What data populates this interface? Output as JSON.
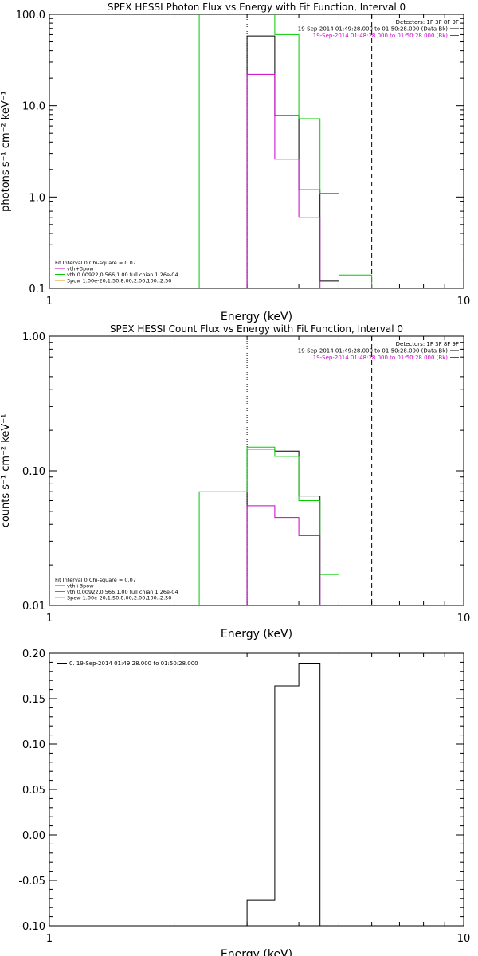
{
  "chart_data": [
    {
      "type": "line",
      "step": true,
      "title": "SPEX HESSI Photon Flux vs Energy with Fit Function, Interval 0",
      "xlabel": "Energy (keV)",
      "ylabel": "photons s⁻¹ cm⁻² keV⁻¹",
      "xscale": "log",
      "yscale": "log",
      "xlim": [
        1,
        10
      ],
      "ylim": [
        0.1,
        100
      ],
      "xticks": [
        "1",
        "10"
      ],
      "yticks": [
        "0.1",
        "1.0",
        "10.0",
        "100.0"
      ],
      "vlines": [
        {
          "x": 3.0,
          "style": "dotted"
        },
        {
          "x": 6.0,
          "style": "dashed"
        }
      ],
      "legend": {
        "placement": "top-right",
        "lines": [
          {
            "text": "Detectors: 1F 3F 8F 9F",
            "color": "#000000",
            "swatch": false
          },
          {
            "text": "19-Sep-2014 01:49:28.000 to 01:50:28.000 (Data-Bk)",
            "color": "#000000",
            "swatch": true
          },
          {
            "text": "19-Sep-2014 01:48:28.000 to 01:50:28.000 (Bk)",
            "color": "#cc00cc",
            "swatch": true
          }
        ]
      },
      "fit_legend": {
        "placement": "bottom-left",
        "lines": [
          {
            "text": "Fit Interval 0   Chi-square = 0.07",
            "color": "#000000"
          },
          {
            "text": "vth+3pow",
            "color": "#cc00cc"
          },
          {
            "text": "vth 0.00922,0.566,1.00  full chian 1.26e-04",
            "color": "#00cc00"
          },
          {
            "text": "3pow 1.00e-20,1.50,8.00,2.00,100.,2.50",
            "color": "#d4a000"
          }
        ]
      },
      "series": [
        {
          "color": "#000000",
          "edges": [
            3.0,
            3.5,
            4.0,
            4.5,
            5.0,
            6.0
          ],
          "values": [
            58,
            7.8,
            1.2,
            0.12,
            0.1
          ]
        },
        {
          "color": "#00cc00",
          "edges": [
            2.3,
            3.0,
            3.5,
            4.0,
            4.5,
            5.0,
            6.0,
            7.0,
            8.0
          ],
          "values": [
            120,
            120,
            60,
            7.2,
            1.1,
            0.14,
            0.1,
            0.1
          ]
        },
        {
          "color": "#cc00cc",
          "edges": [
            3.0,
            3.5,
            4.0,
            4.5,
            5.0,
            6.0
          ],
          "values": [
            22,
            2.6,
            0.6,
            0.1,
            0.1
          ]
        }
      ]
    },
    {
      "type": "line",
      "step": true,
      "title": "SPEX HESSI Count Flux vs Energy with Fit Function, Interval 0",
      "xlabel": "Energy (keV)",
      "ylabel": "counts s⁻¹ cm⁻² keV⁻¹",
      "xscale": "log",
      "yscale": "log",
      "xlim": [
        1,
        10
      ],
      "ylim": [
        0.01,
        1
      ],
      "xticks": [
        "1",
        "10"
      ],
      "yticks": [
        "0.01",
        "0.10",
        "1.00"
      ],
      "vlines": [
        {
          "x": 3.0,
          "style": "dotted"
        },
        {
          "x": 6.0,
          "style": "dashed"
        }
      ],
      "legend": {
        "placement": "top-right",
        "lines": [
          {
            "text": "Detectors: 1F 3F 8F 9F",
            "color": "#000000",
            "swatch": false
          },
          {
            "text": "19-Sep-2014 01:49:28.000 to 01:50:28.000 (Data-Bk)",
            "color": "#000000",
            "swatch": true
          },
          {
            "text": "19-Sep-2014 01:48:28.000 to 01:50:28.000 (Bk)",
            "color": "#cc00cc",
            "swatch": true
          }
        ]
      },
      "fit_legend": {
        "placement": "bottom-left",
        "lines": [
          {
            "text": "Fit Interval 0   Chi-square = 0.07",
            "color": "#000000"
          },
          {
            "text": "vth+3pow",
            "color": "#cc00cc"
          },
          {
            "text": "vth 0.00922,0.566,1.00  full chian 1.26e-04",
            "color": "#00cc00"
          },
          {
            "text": "3pow 1.00e-20,1.50,8.00,2.00,100.,2.50",
            "color": "#d4a000"
          }
        ]
      },
      "series": [
        {
          "color": "#000000",
          "edges": [
            3.0,
            3.5,
            4.0,
            4.5,
            5.0,
            6.0
          ],
          "values": [
            0.145,
            0.14,
            0.065,
            0.01,
            0.01
          ]
        },
        {
          "color": "#00cc00",
          "edges": [
            2.3,
            3.0,
            3.5,
            4.0,
            4.5,
            5.0,
            6.0,
            7.0,
            8.0
          ],
          "values": [
            0.07,
            0.15,
            0.128,
            0.06,
            0.017,
            0.01,
            0.01,
            0.01
          ]
        },
        {
          "color": "#cc00cc",
          "edges": [
            3.0,
            3.5,
            4.0,
            4.5,
            5.0,
            6.0
          ],
          "values": [
            0.055,
            0.045,
            0.033,
            0.01,
            0.01
          ]
        }
      ]
    },
    {
      "type": "line",
      "step": true,
      "title": "",
      "xlabel": "Energy (keV)",
      "ylabel": "",
      "xscale": "log",
      "yscale": "linear",
      "xlim": [
        1,
        10
      ],
      "ylim": [
        -0.1,
        0.2
      ],
      "xticks": [
        "1",
        "10"
      ],
      "yticks": [
        "-0.10",
        "-0.05",
        "0.00",
        "0.05",
        "0.10",
        "0.15",
        "0.20"
      ],
      "vlines": [],
      "legend": {
        "placement": "top-left",
        "lines": [
          {
            "text": "0. 19-Sep-2014 01:49:28.000 to 01:50:28.000",
            "color": "#000000",
            "swatch": true
          }
        ]
      },
      "series": [
        {
          "color": "#000000",
          "edges": [
            3.0,
            3.5,
            4.0,
            4.5
          ],
          "values": [
            -0.072,
            0.164,
            0.189
          ]
        }
      ]
    }
  ]
}
